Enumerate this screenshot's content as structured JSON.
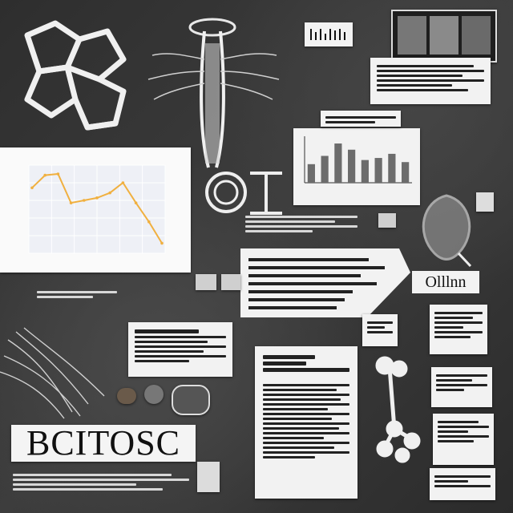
{
  "poster": {
    "headline": "BCITOSC"
  },
  "caption_label": "Olllnn",
  "chart_data": [
    {
      "type": "line",
      "x": [
        1,
        2,
        3,
        4,
        5,
        6,
        7,
        8,
        9,
        10,
        11
      ],
      "series": [
        {
          "values": [
            52,
            62,
            63,
            40,
            42,
            44,
            48,
            56,
            40,
            25,
            8
          ]
        }
      ],
      "ylim": [
        0,
        70
      ],
      "grid": true,
      "color": "#f0b040"
    },
    {
      "type": "bar",
      "categories": [
        "",
        "",
        "",
        "",
        "",
        "",
        "",
        ""
      ],
      "values": [
        18,
        26,
        38,
        32,
        22,
        24,
        28,
        20
      ],
      "ylim": [
        0,
        45
      ],
      "color": "#6c6c6c"
    }
  ]
}
